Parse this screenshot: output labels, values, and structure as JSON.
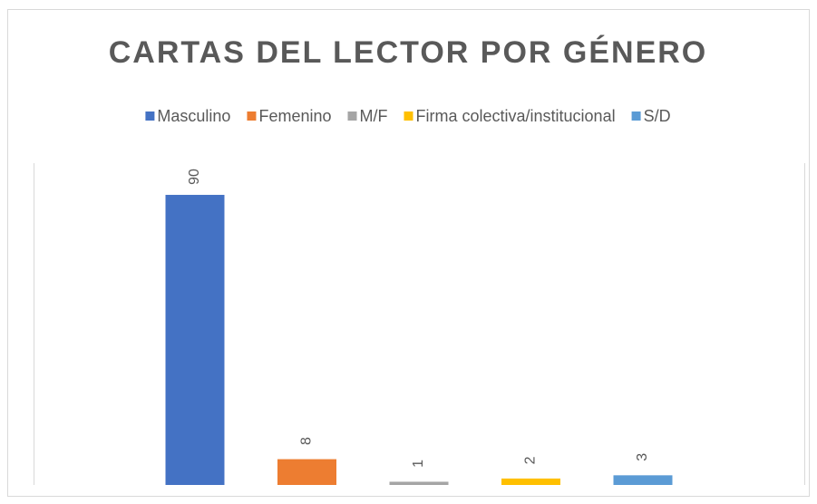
{
  "chart_data": {
    "type": "bar",
    "title": "CARTAS DEL LECTOR POR GÉNERO",
    "categories": [
      null
    ],
    "series": [
      {
        "name": "Masculino",
        "color": "#4472c4",
        "values": [
          90
        ]
      },
      {
        "name": "Femenino",
        "color": "#ed7d31",
        "values": [
          8
        ]
      },
      {
        "name": "M/F",
        "color": "#a5a5a5",
        "values": [
          1
        ]
      },
      {
        "name": "Firma colectiva/institucional",
        "color": "#ffc000",
        "values": [
          2
        ]
      },
      {
        "name": "S/D",
        "color": "#5b9bd5",
        "values": [
          3
        ]
      }
    ],
    "ylim": [
      0,
      100
    ],
    "legend": "top"
  }
}
